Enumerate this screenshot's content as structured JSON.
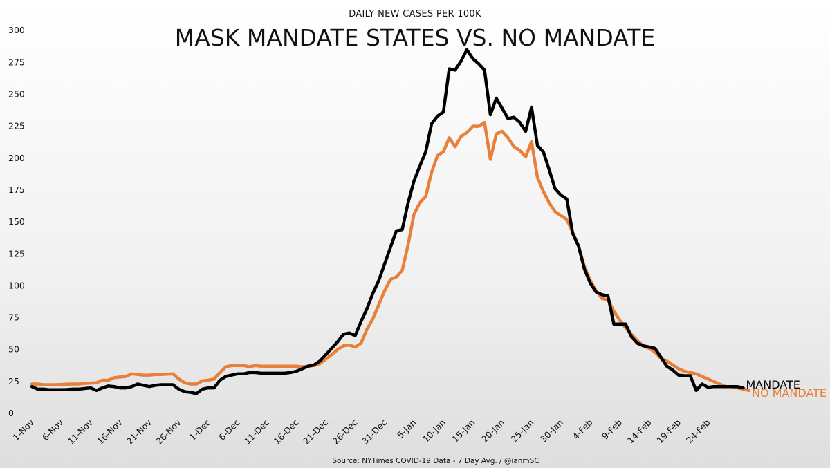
{
  "chart_data": {
    "type": "line",
    "title": "MASK MANDATE STATES VS. NO MANDATE",
    "subtitle": "DAILY NEW CASES PER 100K",
    "source": "Source: NYTimes COVID-19 Data - 7 Day Avg. / @ianmSC",
    "xlabel": "",
    "ylabel": "",
    "ylim": [
      0,
      300
    ],
    "yticks": [
      0,
      25,
      50,
      75,
      100,
      125,
      150,
      175,
      200,
      225,
      250,
      275,
      300
    ],
    "xtick_labels": [
      "1-Nov",
      "6-Nov",
      "11-Nov",
      "16-Nov",
      "21-Nov",
      "26-Nov",
      "1-Dec",
      "6-Dec",
      "11-Dec",
      "16-Dec",
      "21-Dec",
      "26-Dec",
      "31-Dec",
      "5-Jan",
      "10-Jan",
      "15-Jan",
      "20-Jan",
      "25-Jan",
      "30-Jan",
      "4-Feb",
      "9-Feb",
      "14-Feb",
      "19-Feb",
      "24-Feb"
    ],
    "x_start": "1-Nov",
    "x_end": "28-Feb",
    "grid": false,
    "series": [
      {
        "name": "MANDATE",
        "color": "#000000",
        "values": [
          21,
          19,
          19,
          18.5,
          18.5,
          18.5,
          18.7,
          19,
          19,
          19.5,
          20,
          18,
          20,
          21.5,
          21,
          20,
          20,
          21,
          23,
          22,
          21,
          22,
          22.5,
          22.5,
          22.5,
          19,
          17,
          16.5,
          15.5,
          19,
          20,
          20,
          26,
          29,
          30,
          31,
          31,
          32,
          32,
          31.5,
          31.5,
          31.5,
          31.5,
          31.5,
          32,
          33,
          35,
          37,
          38,
          41,
          46,
          51,
          56,
          62,
          63,
          61,
          72,
          82,
          94,
          104,
          117,
          130,
          143,
          144,
          165,
          182,
          194,
          205,
          227,
          233,
          236,
          270,
          269,
          276,
          285,
          278,
          274,
          269,
          234,
          247,
          239,
          231,
          232,
          228,
          221,
          240,
          210,
          205,
          191,
          176,
          171,
          168,
          141,
          131,
          113,
          102,
          95,
          93,
          92,
          70,
          70,
          70,
          60,
          55,
          53,
          52,
          51,
          44,
          37,
          34,
          30,
          29.5,
          29.5,
          18,
          23,
          20.5,
          21,
          21,
          21,
          21,
          21,
          20
        ]
      },
      {
        "name": "NO MANDATE",
        "color": "#E8803A",
        "values": [
          23,
          23,
          22.5,
          22.5,
          22.5,
          22.7,
          22.9,
          23,
          23,
          23.5,
          23.8,
          24,
          26,
          26,
          28,
          28.5,
          29,
          31,
          30.5,
          30,
          30,
          30.5,
          30.5,
          30.7,
          31,
          27,
          24,
          23,
          23,
          25.5,
          26,
          27,
          32,
          36.5,
          37.5,
          37.5,
          37.5,
          36.5,
          37.5,
          37,
          37,
          37,
          37,
          37,
          37,
          37,
          36.5,
          37,
          37.5,
          39,
          42.5,
          46,
          50,
          53,
          53.5,
          52,
          55,
          66,
          74,
          85,
          96,
          105,
          107,
          112,
          132,
          156,
          165,
          170,
          189,
          202,
          205,
          216,
          209,
          217,
          220,
          225,
          225,
          228,
          199,
          219,
          221,
          216,
          209,
          206,
          201,
          213,
          185,
          174,
          165,
          158,
          155,
          152,
          142,
          131,
          115,
          104,
          96,
          90,
          89,
          80,
          73,
          67,
          62,
          57,
          53,
          51,
          48,
          43,
          41,
          38,
          35,
          33,
          32,
          31,
          29,
          27,
          25,
          23,
          21,
          21,
          20,
          19,
          18
        ]
      }
    ]
  }
}
